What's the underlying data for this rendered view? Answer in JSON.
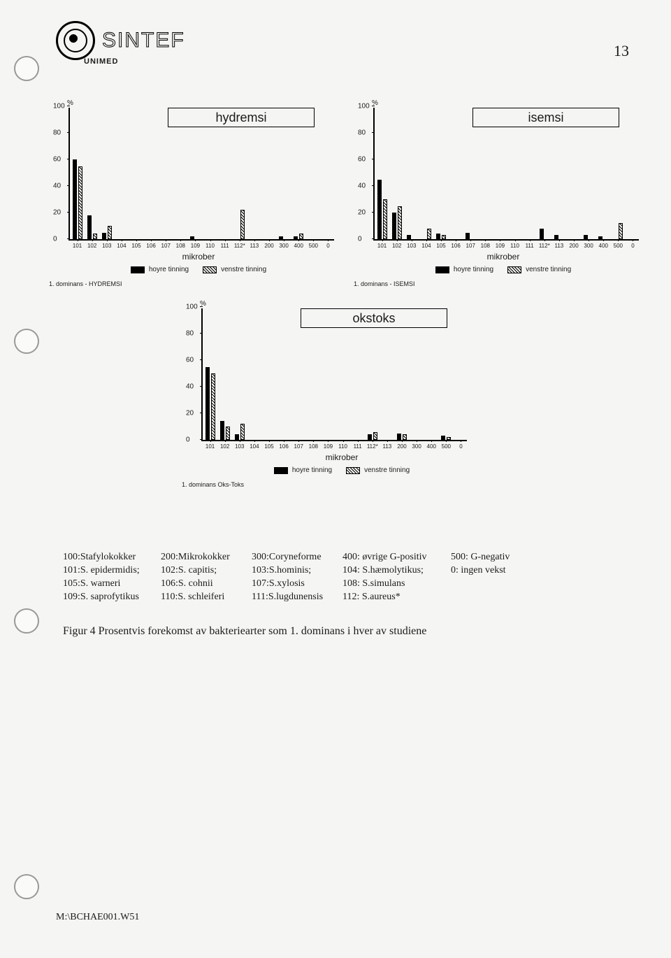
{
  "header": {
    "brand": "SINTEF",
    "brand_sub": "UNIMED",
    "page_number": "13"
  },
  "charts": {
    "x_categories": [
      "101",
      "102",
      "103",
      "104",
      "105",
      "106",
      "107",
      "108",
      "109",
      "110",
      "111",
      "112*",
      "113",
      "200",
      "300",
      "400",
      "500",
      "0"
    ],
    "y_ticks": [
      0,
      20,
      40,
      60,
      80,
      100
    ],
    "y_unit": "%",
    "x_axis_label": "mikrober",
    "legend": {
      "a": "hoyre tinning",
      "b": "venstre tinning"
    },
    "hydremsi": {
      "title": "hydremsi",
      "subcap": "1. dominans - HYDREMSI",
      "hoyre": [
        60,
        18,
        5,
        0,
        0,
        0,
        0,
        0,
        2,
        0,
        0,
        0,
        0,
        0,
        2,
        2,
        0,
        0
      ],
      "venstre": [
        55,
        4,
        10,
        0,
        0,
        0,
        0,
        0,
        0,
        0,
        0,
        22,
        0,
        0,
        0,
        4,
        0,
        0
      ]
    },
    "isemsi": {
      "title": "isemsi",
      "subcap": "1. dominans - ISEMSI",
      "hoyre": [
        45,
        20,
        3,
        0,
        4,
        0,
        5,
        0,
        0,
        0,
        0,
        8,
        3,
        0,
        3,
        2,
        0,
        0
      ],
      "venstre": [
        30,
        25,
        0,
        8,
        3,
        0,
        0,
        0,
        0,
        0,
        0,
        0,
        0,
        0,
        0,
        0,
        12,
        0
      ]
    },
    "okstoks": {
      "title": "okstoks",
      "subcap": "1. dominans Oks-Toks",
      "hoyre": [
        55,
        14,
        4,
        0,
        0,
        0,
        0,
        0,
        0,
        0,
        0,
        4,
        0,
        5,
        0,
        0,
        3,
        0
      ],
      "venstre": [
        50,
        10,
        12,
        0,
        0,
        0,
        0,
        0,
        0,
        0,
        0,
        6,
        0,
        4,
        0,
        0,
        2,
        0
      ]
    }
  },
  "species_key": {
    "c1": [
      "100:Stafylokokker",
      "101:S. epidermidis;",
      "105:S. warneri",
      "109:S. saprofytikus"
    ],
    "c2": [
      "200:Mikrokokker",
      "102:S. capitis;",
      "106:S. cohnii",
      "110:S. schleiferi"
    ],
    "c3": [
      "300:Coryneforme",
      "103:S.hominis;",
      "107:S.xylosis",
      "111:S.lugdunensis"
    ],
    "c4": [
      "400: øvrige G-positiv",
      "104: S.hæmolytikus;",
      "108: S.simulans",
      "112: S.aureus*"
    ],
    "c5": [
      "500: G-negativ",
      "0: ingen vekst",
      "",
      ""
    ]
  },
  "caption": "Figur 4   Prosentvis forekomst av bakteriearter som 1. dominans i hver av studiene",
  "footer": "M:\\BCHAE001.W51",
  "colors": {
    "ink": "#1a1a1a",
    "paper": "#f5f5f3"
  }
}
